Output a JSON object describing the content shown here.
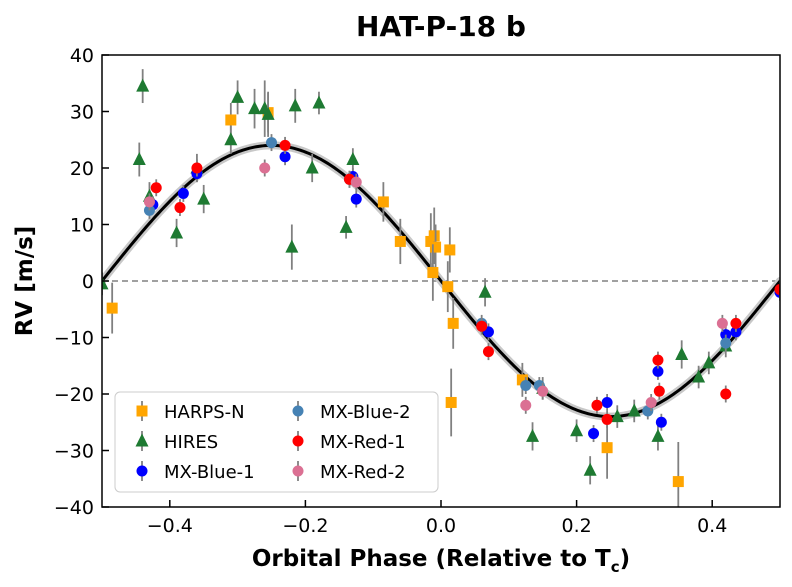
{
  "chart_data": {
    "type": "scatter",
    "title": "HAT-P-18 b",
    "xlabel": "Orbital Phase (Relative to T",
    "xlabel_sub": "c",
    "xlabel_close": ")",
    "ylabel": "RV [m/s]",
    "xlim": [
      -0.5,
      0.5
    ],
    "ylim": [
      -40,
      40
    ],
    "xticks": [
      -0.4,
      -0.2,
      0.0,
      0.2,
      0.4
    ],
    "xtick_labels": [
      "−0.4",
      "−0.2",
      "0.0",
      "0.2",
      "0.4"
    ],
    "yticks": [
      -40,
      -30,
      -20,
      -10,
      0,
      10,
      20,
      30,
      40
    ],
    "ytick_labels": [
      "−40",
      "−30",
      "−20",
      "−10",
      "0",
      "10",
      "20",
      "30",
      "40"
    ],
    "grid": false,
    "legend_position": "lower-left",
    "model": {
      "amplitude": 24,
      "color": "#000000",
      "band_color": "#c8c8c8"
    },
    "zero_line": {
      "y": 0,
      "style": "dashed",
      "color": "#808080"
    },
    "error_bar_color": "#808080",
    "series": [
      {
        "name": "HARPS-N",
        "marker": "square",
        "color": "#ffa500",
        "points": [
          {
            "x": -0.485,
            "y": -4.8,
            "err": 4.5
          },
          {
            "x": -0.31,
            "y": 28.5,
            "err": 3.0
          },
          {
            "x": -0.255,
            "y": 29.8,
            "err": 3.5
          },
          {
            "x": -0.085,
            "y": 14.0,
            "err": 3.5
          },
          {
            "x": -0.06,
            "y": 7.0,
            "err": 4.0
          },
          {
            "x": -0.015,
            "y": 7.0,
            "err": 5.0
          },
          {
            "x": -0.01,
            "y": 8.0,
            "err": 5.0
          },
          {
            "x": -0.008,
            "y": 6.0,
            "err": 4.0
          },
          {
            "x": -0.012,
            "y": 1.5,
            "err": 5.0
          },
          {
            "x": 0.01,
            "y": -1.0,
            "err": 4.5
          },
          {
            "x": 0.013,
            "y": 5.5,
            "err": 4.0
          },
          {
            "x": 0.018,
            "y": -7.5,
            "err": 4.5
          },
          {
            "x": 0.015,
            "y": -21.5,
            "err": 6.0
          },
          {
            "x": 0.12,
            "y": -17.5,
            "err": 3.0
          },
          {
            "x": 0.245,
            "y": -29.5,
            "err": 5.5
          },
          {
            "x": 0.35,
            "y": -35.5,
            "err": 7.0
          }
        ]
      },
      {
        "name": "HIRES",
        "marker": "triangle",
        "color": "#1e7a32",
        "points": [
          {
            "x": -0.5,
            "y": -0.5,
            "err": 2.0
          },
          {
            "x": -0.445,
            "y": 21.5,
            "err": 3.0
          },
          {
            "x": -0.44,
            "y": 34.5,
            "err": 3.0
          },
          {
            "x": -0.43,
            "y": 15.0,
            "err": 2.5
          },
          {
            "x": -0.39,
            "y": 8.5,
            "err": 2.5
          },
          {
            "x": -0.36,
            "y": 20.0,
            "err": 2.5
          },
          {
            "x": -0.35,
            "y": 14.5,
            "err": 2.5
          },
          {
            "x": -0.31,
            "y": 25.0,
            "err": 2.5
          },
          {
            "x": -0.3,
            "y": 32.5,
            "err": 3.0
          },
          {
            "x": -0.275,
            "y": 30.5,
            "err": 3.5
          },
          {
            "x": -0.26,
            "y": 30.5,
            "err": 5.0
          },
          {
            "x": -0.255,
            "y": 29.5,
            "err": 4.0
          },
          {
            "x": -0.22,
            "y": 6.0,
            "err": 4.0
          },
          {
            "x": -0.215,
            "y": 31.0,
            "err": 3.0
          },
          {
            "x": -0.19,
            "y": 20.0,
            "err": 2.5
          },
          {
            "x": -0.18,
            "y": 31.5,
            "err": 2.0
          },
          {
            "x": -0.14,
            "y": 9.5,
            "err": 2.0
          },
          {
            "x": -0.13,
            "y": 21.5,
            "err": 2.0
          },
          {
            "x": 0.065,
            "y": -2.0,
            "err": 2.5
          },
          {
            "x": 0.135,
            "y": -27.5,
            "err": 2.5
          },
          {
            "x": 0.15,
            "y": -19.0,
            "err": 2.0
          },
          {
            "x": 0.2,
            "y": -26.5,
            "err": 2.0
          },
          {
            "x": 0.22,
            "y": -33.5,
            "err": 2.5
          },
          {
            "x": 0.26,
            "y": -24.0,
            "err": 2.0
          },
          {
            "x": 0.285,
            "y": -23.0,
            "err": 2.0
          },
          {
            "x": 0.32,
            "y": -27.5,
            "err": 2.5
          },
          {
            "x": 0.355,
            "y": -13.0,
            "err": 2.5
          },
          {
            "x": 0.38,
            "y": -17.0,
            "err": 2.0
          },
          {
            "x": 0.395,
            "y": -14.5,
            "err": 2.0
          },
          {
            "x": 0.42,
            "y": -11.5,
            "err": 2.0
          }
        ]
      },
      {
        "name": "MX-Blue-1",
        "marker": "circle",
        "color": "#0000ff",
        "points": [
          {
            "x": -0.425,
            "y": 13.5,
            "err": 1.5
          },
          {
            "x": -0.38,
            "y": 15.5,
            "err": 1.5
          },
          {
            "x": -0.36,
            "y": 19.0,
            "err": 1.5
          },
          {
            "x": -0.23,
            "y": 22.0,
            "err": 1.5
          },
          {
            "x": -0.13,
            "y": 18.5,
            "err": 1.5
          },
          {
            "x": -0.125,
            "y": 14.5,
            "err": 1.5
          },
          {
            "x": 0.07,
            "y": -9.0,
            "err": 1.5
          },
          {
            "x": 0.225,
            "y": -27.0,
            "err": 1.5
          },
          {
            "x": 0.245,
            "y": -21.5,
            "err": 1.5
          },
          {
            "x": 0.32,
            "y": -16.0,
            "err": 1.5
          },
          {
            "x": 0.325,
            "y": -25.0,
            "err": 1.5
          },
          {
            "x": 0.42,
            "y": -9.5,
            "err": 1.5
          },
          {
            "x": 0.435,
            "y": -9.0,
            "err": 1.5
          },
          {
            "x": 0.5,
            "y": -2.0,
            "err": 1.5
          }
        ]
      },
      {
        "name": "MX-Blue-2",
        "marker": "circle",
        "color": "#4682b4",
        "points": [
          {
            "x": -0.43,
            "y": 12.5,
            "err": 1.5
          },
          {
            "x": -0.25,
            "y": 24.5,
            "err": 1.5
          },
          {
            "x": -0.135,
            "y": 18.0,
            "err": 1.5
          },
          {
            "x": 0.06,
            "y": -7.5,
            "err": 1.5
          },
          {
            "x": 0.125,
            "y": -18.5,
            "err": 1.5
          },
          {
            "x": 0.145,
            "y": -18.5,
            "err": 1.5
          },
          {
            "x": 0.305,
            "y": -23.0,
            "err": 1.5
          },
          {
            "x": 0.42,
            "y": -11.0,
            "err": 1.5
          }
        ]
      },
      {
        "name": "MX-Red-1",
        "marker": "circle",
        "color": "#ff0000",
        "points": [
          {
            "x": -0.42,
            "y": 16.5,
            "err": 1.5
          },
          {
            "x": -0.385,
            "y": 13.0,
            "err": 1.5
          },
          {
            "x": -0.36,
            "y": 20.0,
            "err": 1.5
          },
          {
            "x": -0.23,
            "y": 24.0,
            "err": 1.5
          },
          {
            "x": -0.135,
            "y": 18.0,
            "err": 1.5
          },
          {
            "x": 0.06,
            "y": -8.0,
            "err": 1.5
          },
          {
            "x": 0.07,
            "y": -12.5,
            "err": 1.5
          },
          {
            "x": 0.23,
            "y": -22.0,
            "err": 1.5
          },
          {
            "x": 0.245,
            "y": -24.5,
            "err": 1.5
          },
          {
            "x": 0.32,
            "y": -14.0,
            "err": 1.5
          },
          {
            "x": 0.322,
            "y": -19.5,
            "err": 1.5
          },
          {
            "x": 0.42,
            "y": -20.0,
            "err": 1.5
          },
          {
            "x": 0.435,
            "y": -7.5,
            "err": 1.5
          },
          {
            "x": 0.5,
            "y": -1.5,
            "err": 1.5
          }
        ]
      },
      {
        "name": "MX-Red-2",
        "marker": "circle",
        "color": "#db7093",
        "points": [
          {
            "x": -0.43,
            "y": 14.0,
            "err": 1.5
          },
          {
            "x": -0.26,
            "y": 20.0,
            "err": 1.5
          },
          {
            "x": -0.125,
            "y": 17.5,
            "err": 1.5
          },
          {
            "x": 0.125,
            "y": -22.0,
            "err": 1.5
          },
          {
            "x": 0.15,
            "y": -19.5,
            "err": 1.5
          },
          {
            "x": 0.31,
            "y": -21.5,
            "err": 1.5
          },
          {
            "x": 0.415,
            "y": -7.5,
            "err": 1.5
          }
        ]
      }
    ]
  }
}
